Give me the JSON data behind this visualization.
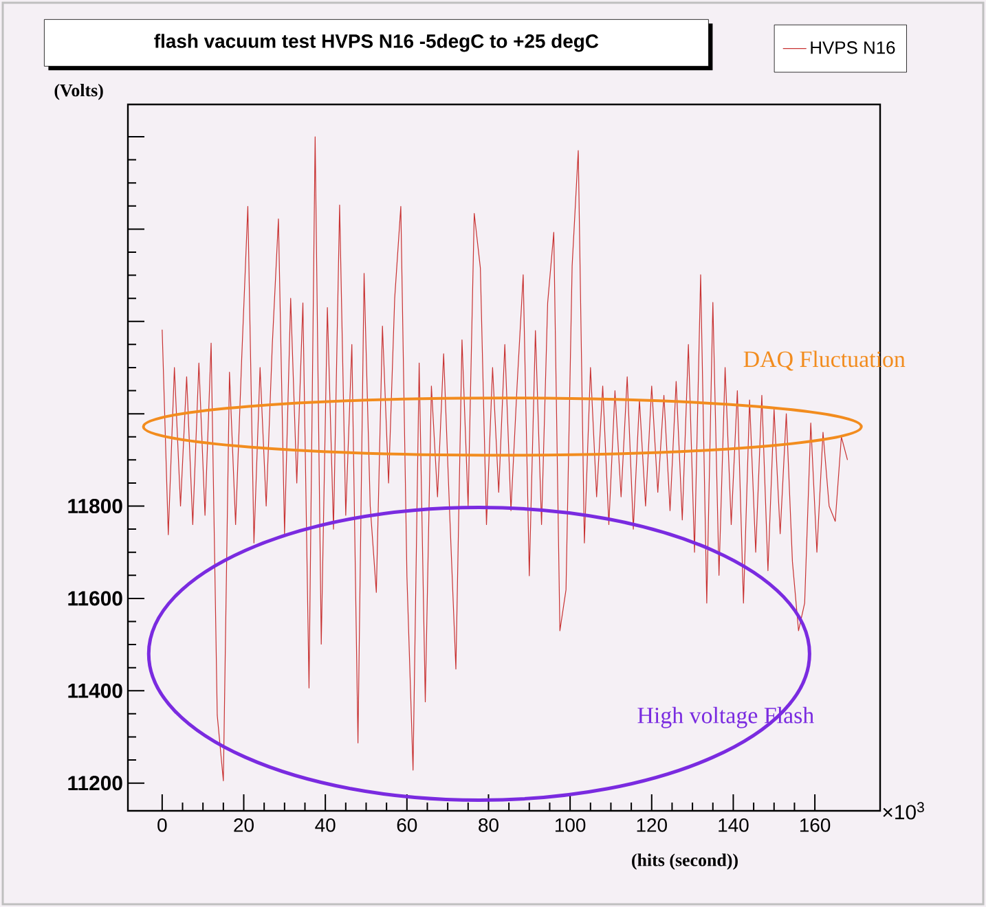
{
  "chart_data": {
    "type": "line",
    "title": "flash vacuum test  HVPS  N16  -5degC to +25 degC",
    "xlabel": "(hits (second))",
    "ylabel": "(Volts)",
    "annotations": [
      "DAQ Fluctuation",
      "High voltage Flash",
      "×10$^{3}$"
    ],
    "xlim": [
      -8.4,
      176
    ],
    "ylim": [
      11140,
      12670
    ],
    "xticks": [
      0,
      20,
      40,
      60,
      80,
      100,
      120,
      140,
      160
    ],
    "yticks": [
      11200,
      11400,
      11600,
      11800,
      {
        "value": 12000,
        "label": null
      },
      {
        "value": 12200,
        "label": null
      },
      {
        "value": 12400,
        "label": null
      },
      {
        "value": 12600,
        "label": null
      }
    ],
    "grid": false,
    "legend": "top right",
    "marker": "none",
    "line_style": "solid",
    "series": [
      {
        "name": "HVPS N16",
        "color": "#c83232",
        "x": [
          0,
          1.5,
          3,
          4.5,
          6,
          7.5,
          9,
          10.5,
          12,
          13.5,
          15,
          16.5,
          18,
          19.5,
          21,
          22.5,
          24,
          25.5,
          27,
          28.5,
          30,
          31.5,
          33,
          34.5,
          36,
          37.5,
          39,
          40.5,
          42,
          43.5,
          45,
          46.5,
          48,
          49.5,
          51,
          52.5,
          54,
          55.5,
          57,
          58.5,
          60,
          61.5,
          63,
          64.5,
          66,
          67.5,
          69,
          70.5,
          72,
          73.5,
          75,
          76.5,
          78,
          79.5,
          81,
          82.5,
          84,
          85.5,
          87,
          88.5,
          90,
          91.5,
          93,
          94.5,
          96,
          97.5,
          99,
          100.5,
          102,
          103.5,
          105,
          106.5,
          108,
          109.5,
          111,
          112.5,
          114,
          115.5,
          117,
          118.5,
          120,
          121.5,
          123,
          124.5,
          126,
          127.5,
          129,
          130.5,
          132,
          133.5,
          135,
          136.5,
          138,
          139.5,
          141,
          142.5,
          144,
          145.5,
          147,
          148.5,
          150,
          151.5,
          153,
          154.5,
          156,
          157.5,
          159,
          160.5,
          162,
          163.5,
          165,
          166.5,
          168
        ],
        "values": [
          12182,
          11738,
          12100,
          11800,
          12080,
          11760,
          12110,
          11780,
          12153,
          11347,
          11205,
          12090,
          11760,
          12120,
          12449,
          11720,
          12100,
          11800,
          12150,
          12422,
          11740,
          12250,
          11850,
          12240,
          11406,
          12600,
          11501,
          12230,
          11750,
          12452,
          11780,
          12150,
          11287,
          12304,
          11800,
          11613,
          12190,
          11850,
          12250,
          12449,
          11648,
          11228,
          12110,
          11376,
          12060,
          11820,
          12130,
          11780,
          11447,
          12160,
          11800,
          12434,
          12316,
          11760,
          12100,
          11830,
          12150,
          11790,
          12060,
          12301,
          11649,
          12180,
          11760,
          12240,
          12393,
          11530,
          11619,
          12320,
          12570,
          11720,
          12100,
          11820,
          12060,
          11760,
          12050,
          11820,
          12080,
          11750,
          12030,
          11800,
          12060,
          11830,
          12040,
          11790,
          12070,
          11770,
          12150,
          11700,
          12301,
          11590,
          12241,
          11650,
          12100,
          11760,
          12050,
          11590,
          12030,
          11700,
          12040,
          11660,
          12010,
          11740,
          12000,
          11680,
          11530,
          11590,
          11980,
          11700,
          11960,
          11800,
          11767,
          11950,
          11900
        ]
      }
    ]
  }
}
